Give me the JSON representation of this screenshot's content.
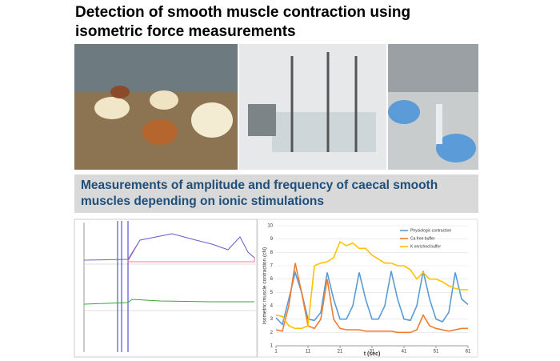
{
  "title": "Detection of smooth muscle contraction using isometric force measurements",
  "banner": "Measurements of amplitude and frequency of caecal smooth muscles depending on ionic stimulations",
  "chart_data": {
    "type": "line",
    "y_label": "Isometric muscle contraction (cN)",
    "x_label": "t (sec)",
    "x": [
      1,
      3,
      5,
      7,
      9,
      11,
      13,
      15,
      17,
      19,
      21,
      23,
      25,
      27,
      29,
      31,
      33,
      35,
      37,
      39,
      41,
      43,
      45,
      47,
      49,
      51,
      53,
      55,
      57,
      59,
      61
    ],
    "xlim": [
      1,
      61
    ],
    "xticks": [
      1,
      11,
      21,
      31,
      41,
      51,
      61
    ],
    "ylim": [
      1,
      10
    ],
    "yticks": [
      1,
      2,
      3,
      4,
      5,
      6,
      7,
      8,
      9,
      10
    ],
    "legend": "upper right",
    "series": [
      {
        "name": "Physiologic contraction",
        "color": "#5b9bd5",
        "values": [
          3.1,
          2.6,
          4.5,
          6.5,
          5,
          3,
          2.9,
          3.5,
          6.5,
          4.5,
          3,
          3,
          4,
          6.5,
          4.5,
          3,
          3,
          4,
          6.6,
          4.5,
          3,
          2.9,
          4,
          6.6,
          4.5,
          3,
          2.8,
          3.5,
          6.5,
          4.5,
          4.1
        ]
      },
      {
        "name": "Ca free buffer",
        "color": "#ed7d31",
        "values": [
          2.2,
          2.1,
          4,
          7.2,
          5,
          2.5,
          2.3,
          3,
          6,
          3,
          2.3,
          2.2,
          2.2,
          2.2,
          2.1,
          2.1,
          2.1,
          2.1,
          2.1,
          2,
          2,
          2,
          2.2,
          3.3,
          2.5,
          2.3,
          2.2,
          2.1,
          2.2,
          2.3,
          2.3
        ]
      },
      {
        "name": "K enriched buffer",
        "color": "#ffc000",
        "values": [
          3.3,
          3.2,
          2.5,
          2.3,
          2.3,
          2.5,
          7,
          7.2,
          7.3,
          7.6,
          8.8,
          8.5,
          8.7,
          8.3,
          8.3,
          7.8,
          7.5,
          7.2,
          7.2,
          7,
          7,
          6.7,
          6,
          6.5,
          6,
          6,
          5.8,
          5.5,
          5.3,
          5.2,
          5.2
        ]
      }
    ]
  }
}
